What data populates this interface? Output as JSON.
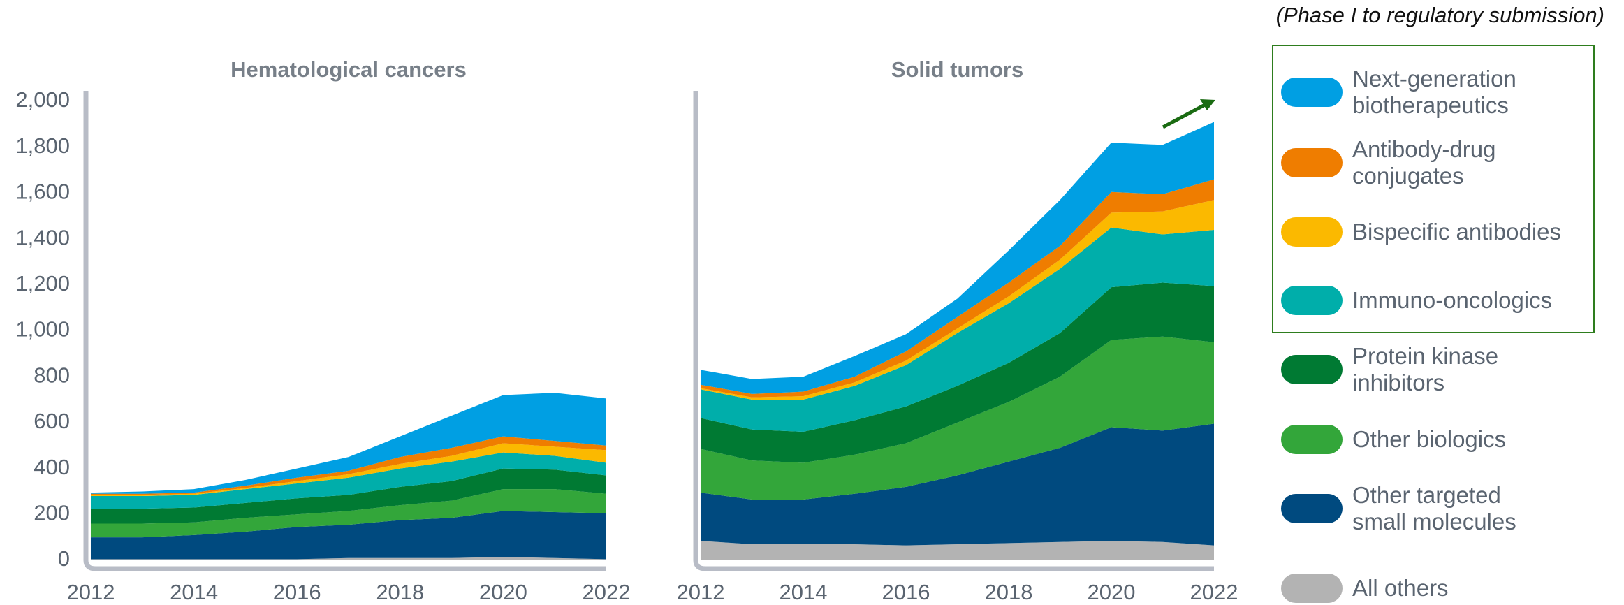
{
  "legend_title": "(Phase I to regulatory submission)",
  "chart_data": [
    {
      "type": "area",
      "title": "Hematological cancers",
      "x": [
        2012,
        2013,
        2014,
        2015,
        2016,
        2017,
        2018,
        2019,
        2020,
        2021,
        2022
      ],
      "xlim": [
        2012,
        2022
      ],
      "xticks": [
        2012,
        2014,
        2016,
        2018,
        2020,
        2022
      ],
      "ylim": [
        0,
        2000
      ],
      "yticks": [
        0,
        200,
        400,
        600,
        800,
        {
          "value": 1000,
          "label": "1,000"
        },
        {
          "value": 1200,
          "label": "1,200"
        },
        {
          "value": 1400,
          "label": "1,400"
        },
        {
          "value": 1600,
          "label": "1,600"
        },
        {
          "value": 1800,
          "label": "1,800"
        },
        {
          "value": 2000,
          "label": "2,000"
        }
      ],
      "series": [
        {
          "name": "All others",
          "color": "#b3b3b3",
          "values": [
            5,
            5,
            5,
            5,
            5,
            10,
            10,
            10,
            15,
            10,
            5
          ]
        },
        {
          "name": "Other targeted\nsmall molecules",
          "color": "#004a7f",
          "values": [
            95,
            95,
            105,
            120,
            140,
            145,
            165,
            175,
            200,
            200,
            200
          ]
        },
        {
          "name": "Other biologics",
          "color": "#33a63a",
          "values": [
            60,
            60,
            55,
            60,
            55,
            60,
            65,
            75,
            95,
            100,
            85
          ]
        },
        {
          "name": "Protein kinase\ninhibitors",
          "color": "#007a33",
          "values": [
            65,
            65,
            65,
            65,
            70,
            70,
            80,
            85,
            90,
            85,
            80
          ]
        },
        {
          "name": "Immuno-oncologics",
          "color": "#00aeaa",
          "values": [
            55,
            55,
            55,
            60,
            65,
            75,
            80,
            85,
            70,
            60,
            55
          ]
        },
        {
          "name": "Bispecific antibodies",
          "color": "#fbb900",
          "values": [
            5,
            5,
            5,
            5,
            10,
            15,
            20,
            25,
            40,
            40,
            55
          ]
        },
        {
          "name": "Antibody-drug\nconjugates",
          "color": "#ef7d00",
          "values": [
            5,
            5,
            5,
            10,
            15,
            15,
            30,
            35,
            30,
            25,
            20
          ]
        },
        {
          "name": "Next-generation\nbiotherapeutics",
          "color": "#009fe3",
          "values": [
            5,
            10,
            15,
            25,
            40,
            60,
            90,
            140,
            180,
            210,
            205
          ]
        }
      ]
    },
    {
      "type": "area",
      "title": "Solid tumors",
      "x": [
        2012,
        2013,
        2014,
        2015,
        2016,
        2017,
        2018,
        2019,
        2020,
        2021,
        2022
      ],
      "xlim": [
        2012,
        2022
      ],
      "xticks": [
        2012,
        2014,
        2016,
        2018,
        2020,
        2022
      ],
      "ylim": [
        0,
        2000
      ],
      "series": [
        {
          "name": "All others",
          "color": "#b3b3b3",
          "values": [
            85,
            70,
            70,
            70,
            65,
            70,
            75,
            80,
            85,
            80,
            65
          ]
        },
        {
          "name": "Other targeted\nsmall molecules",
          "color": "#004a7f",
          "values": [
            210,
            195,
            195,
            220,
            255,
            300,
            355,
            410,
            495,
            485,
            530
          ]
        },
        {
          "name": "Other biologics",
          "color": "#33a63a",
          "values": [
            190,
            170,
            160,
            170,
            190,
            230,
            260,
            310,
            380,
            410,
            355
          ]
        },
        {
          "name": "Protein kinase\ninhibitors",
          "color": "#007a33",
          "values": [
            135,
            135,
            135,
            150,
            160,
            160,
            170,
            190,
            230,
            235,
            245
          ]
        },
        {
          "name": "Immuno-oncologics",
          "color": "#00aeaa",
          "values": [
            125,
            130,
            140,
            150,
            180,
            230,
            260,
            280,
            260,
            210,
            245
          ]
        },
        {
          "name": "Bispecific antibodies",
          "color": "#fbb900",
          "values": [
            5,
            10,
            15,
            15,
            20,
            20,
            30,
            40,
            65,
            100,
            130
          ]
        },
        {
          "name": "Antibody-drug\nconjugates",
          "color": "#ef7d00",
          "values": [
            15,
            15,
            20,
            25,
            40,
            50,
            60,
            60,
            90,
            75,
            90
          ]
        },
        {
          "name": "Next-generation\nbiotherapeutics",
          "color": "#009fe3",
          "values": [
            65,
            65,
            65,
            90,
            75,
            80,
            140,
            200,
            215,
            215,
            250
          ]
        }
      ]
    }
  ]
}
